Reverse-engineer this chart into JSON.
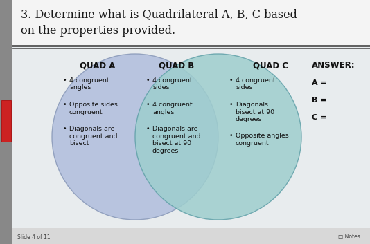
{
  "title_line1": "3. Determine what is Quadrilateral A, B, C based",
  "title_line2": "on the properties provided.",
  "title_fontsize": 11.5,
  "outer_bg": "#9a9a9a",
  "left_panel_bg": "#c8c8c8",
  "content_bg": "#e0e0e0",
  "slide_bg": "#e8e8e8",
  "quad_a_color": "#b0bedd",
  "quad_c_color": "#9ecece",
  "quad_a_label": "QUAD A",
  "quad_b_label": "QUAD B",
  "quad_c_label": "QUAD C",
  "quad_a_items": [
    "4 congruent\nangles",
    "Opposite sides\ncongruent",
    "Diagonals are\ncongruent and\nbisect"
  ],
  "quad_b_items": [
    "4 congruent\nsides",
    "4 congruent\nangles",
    "Diagonals are\ncongruent and\nbisect at 90\ndegrees"
  ],
  "quad_c_items": [
    "4 congruent\nsides",
    "Diagonals\nbisect at 90\ndegrees",
    "Opposite angles\ncongruent"
  ],
  "answer_label": "ANSWER:",
  "answer_a": "A =",
  "answer_b": "B =",
  "answer_c": "C =",
  "slide_number": "Slide 4 of 11",
  "notes_label": "□ Notes"
}
